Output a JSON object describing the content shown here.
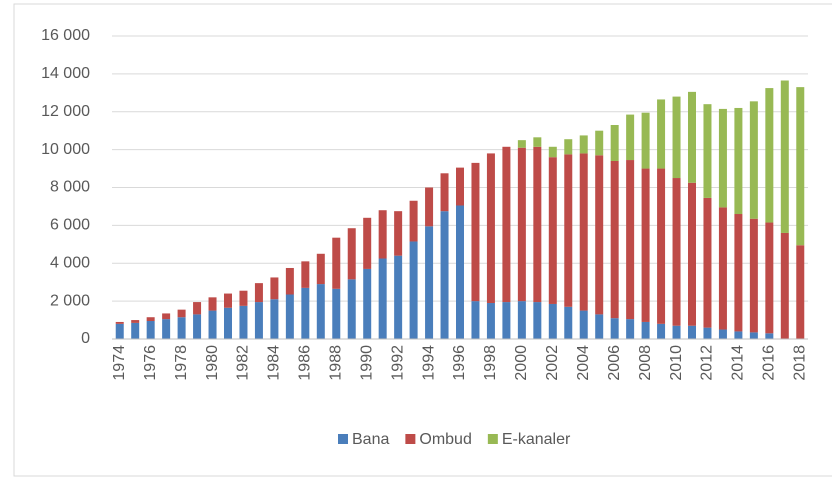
{
  "chart_data": {
    "type": "stacked_bar",
    "categories": [
      "1974",
      null,
      "1976",
      null,
      "1978",
      null,
      "1980",
      null,
      "1982",
      null,
      "1984",
      null,
      "1986",
      null,
      "1988",
      null,
      "1990",
      null,
      "1992",
      null,
      "1994",
      null,
      "1996",
      null,
      "1998",
      null,
      "2000",
      null,
      "2002",
      null,
      "2004",
      null,
      "2006",
      null,
      "2008",
      null,
      "2010",
      null,
      "2012",
      null,
      "2014",
      null,
      "2016",
      null,
      "2018"
    ],
    "series": [
      {
        "name": "Bana",
        "color": "#4a7ebb",
        "values": [
          800,
          850,
          950,
          1050,
          1150,
          1300,
          1500,
          1650,
          1750,
          1950,
          2100,
          2350,
          2700,
          2900,
          2650,
          3150,
          3700,
          4250,
          4400,
          5150,
          5950,
          6750,
          7050,
          2000,
          1900,
          1950,
          2000,
          1950,
          1850,
          1700,
          1500,
          1300,
          1100,
          1050,
          900,
          800,
          700,
          700,
          600,
          500,
          400,
          350,
          300,
          null,
          null
        ]
      },
      {
        "name": "Ombud",
        "color": "#be4b48",
        "values": [
          100,
          150,
          200,
          300,
          400,
          650,
          700,
          750,
          800,
          1000,
          1150,
          1400,
          1400,
          1600,
          2700,
          2700,
          2700,
          2550,
          2350,
          2150,
          2050,
          2000,
          2000,
          7300,
          7900,
          8200,
          8100,
          8200,
          7750,
          8050,
          8300,
          8400,
          8300,
          8400,
          8100,
          8200,
          7800,
          7550,
          6850,
          6450,
          6200,
          6000,
          5850,
          5600,
          4950
        ]
      },
      {
        "name": "E-kanaler",
        "color": "#98b954",
        "values": [
          null,
          null,
          null,
          null,
          null,
          null,
          null,
          null,
          null,
          null,
          null,
          null,
          null,
          null,
          null,
          null,
          null,
          null,
          null,
          null,
          null,
          null,
          null,
          null,
          null,
          null,
          400,
          500,
          550,
          800,
          950,
          1300,
          1900,
          2400,
          2950,
          3650,
          4300,
          4800,
          4950,
          5200,
          5600,
          6200,
          7100,
          8050,
          8350
        ]
      }
    ],
    "ylim": [
      0,
      16000
    ],
    "yticks": [
      0,
      {
        "value": 2000,
        "label": "2 000"
      },
      {
        "value": 4000,
        "label": "4 000"
      },
      {
        "value": 6000,
        "label": "6 000"
      },
      {
        "value": 8000,
        "label": "8 000"
      },
      {
        "value": 10000,
        "label": "10 000"
      },
      {
        "value": 12000,
        "label": "12 000"
      },
      {
        "value": 14000,
        "label": "14 000"
      },
      {
        "value": 16000,
        "label": "16 000"
      }
    ],
    "grid": true,
    "legend": "bottom"
  }
}
